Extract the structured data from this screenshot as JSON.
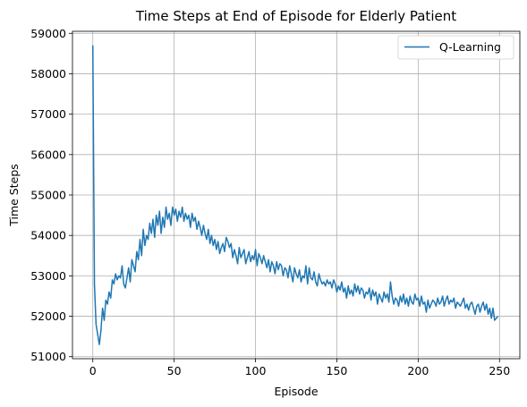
{
  "chart_data": {
    "type": "line",
    "title": "Time Steps at End of Episode for Elderly Patient",
    "xlabel": "Episode",
    "ylabel": "Time Steps",
    "xlim": [
      -12.5,
      262.5
    ],
    "ylim": [
      50950,
      59050
    ],
    "xticks": [
      0,
      50,
      100,
      150,
      200,
      250
    ],
    "yticks": [
      51000,
      52000,
      53000,
      54000,
      55000,
      56000,
      57000,
      58000,
      59000
    ],
    "grid": true,
    "legend": "top-right",
    "series": [
      {
        "name": "Q-Learning",
        "color": "#1f77b4",
        "x_start": 0,
        "x_step": 1,
        "values": [
          58700,
          52800,
          51800,
          51550,
          51300,
          51650,
          52200,
          51900,
          52400,
          52300,
          52600,
          52450,
          52900,
          52800,
          53050,
          52900,
          53000,
          52950,
          53250,
          52800,
          52700,
          52950,
          53200,
          52850,
          53400,
          53250,
          53100,
          53600,
          53400,
          53900,
          53500,
          54150,
          53750,
          54000,
          53900,
          54300,
          54050,
          54400,
          53950,
          54500,
          54250,
          54600,
          54050,
          54450,
          54200,
          54700,
          54400,
          54550,
          54250,
          54700,
          54500,
          54650,
          54350,
          54600,
          54450,
          54700,
          54350,
          54550,
          54400,
          54500,
          54200,
          54550,
          54350,
          54450,
          54150,
          54350,
          54200,
          54000,
          54250,
          54050,
          53900,
          54150,
          53800,
          54000,
          53750,
          53900,
          53650,
          53850,
          53550,
          53700,
          53800,
          53600,
          53950,
          53850,
          53700,
          53800,
          53450,
          53650,
          53500,
          53300,
          53700,
          53450,
          53550,
          53650,
          53300,
          53450,
          53600,
          53350,
          53500,
          53400,
          53650,
          53250,
          53550,
          53450,
          53300,
          53500,
          53350,
          53200,
          53400,
          53100,
          53350,
          53250,
          53050,
          53350,
          53150,
          53300,
          53250,
          53000,
          53200,
          53150,
          52950,
          53250,
          53050,
          52850,
          53200,
          53050,
          52950,
          53150,
          52850,
          53000,
          52950,
          53250,
          52800,
          53200,
          52950,
          52900,
          53100,
          52850,
          52750,
          53050,
          52900,
          52800,
          52850,
          52750,
          52900,
          52800,
          52850,
          52700,
          52900,
          52800,
          52600,
          52750,
          52650,
          52850,
          52600,
          52700,
          52450,
          52750,
          52550,
          52650,
          52500,
          52800,
          52600,
          52750,
          52550,
          52700,
          52650,
          52450,
          52600,
          52550,
          52700,
          52400,
          52650,
          52500,
          52600,
          52300,
          52550,
          52450,
          52350,
          52600,
          52450,
          52550,
          52350,
          52850,
          52500,
          52300,
          52450,
          52400,
          52250,
          52500,
          52350,
          52550,
          52300,
          52450,
          52250,
          52500,
          52350,
          52300,
          52550,
          52400,
          52450,
          52250,
          52500,
          52300,
          52350,
          52100,
          52400,
          52200,
          52300,
          52400,
          52350,
          52250,
          52450,
          52300,
          52350,
          52500,
          52250,
          52400,
          52500,
          52300,
          52400,
          52350,
          52450,
          52200,
          52350,
          52300,
          52250,
          52350,
          52450,
          52200,
          52300,
          52150,
          52300,
          52350,
          52200,
          52050,
          52250,
          52300,
          52100,
          52250,
          52350,
          52150,
          52300,
          52050,
          52200,
          51950,
          52200,
          51900,
          51950,
          52000
        ]
      }
    ]
  }
}
